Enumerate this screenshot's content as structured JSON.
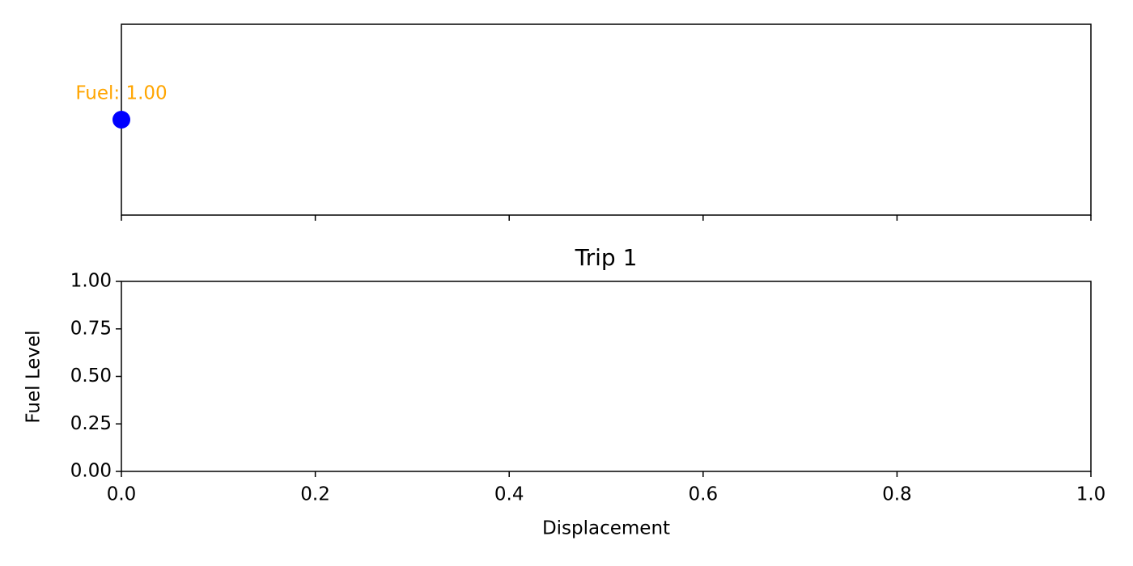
{
  "chart_data": [
    {
      "type": "scatter",
      "annotation": "Fuel: 1.00",
      "annotation_color": "#ffa500",
      "x": [
        0
      ],
      "series": [
        {
          "color": "#0000ff",
          "values": [
            0
          ]
        }
      ],
      "xlim": [
        0,
        1
      ],
      "ylim": [
        -0.05,
        0.05
      ],
      "xticks": [
        0,
        0.2,
        0.4,
        0.6,
        0.8,
        1
      ]
    },
    {
      "type": "line",
      "title": "Trip 1",
      "x_label": "Displacement",
      "y_label": "Fuel Level",
      "xlim": [
        0,
        1
      ],
      "ylim": [
        0,
        1
      ],
      "xticks": [
        {
          "value": 0,
          "label": "0.0"
        },
        0.2,
        0.4,
        0.6,
        0.8,
        {
          "value": 1,
          "label": "1.0"
        }
      ],
      "yticks": [
        {
          "value": 0,
          "label": "0.00"
        },
        {
          "value": 0.25,
          "label": "0.25"
        },
        {
          "value": 0.5,
          "label": "0.50"
        },
        {
          "value": 0.75,
          "label": "0.75"
        },
        {
          "value": 1,
          "label": "1.00"
        }
      ]
    }
  ]
}
